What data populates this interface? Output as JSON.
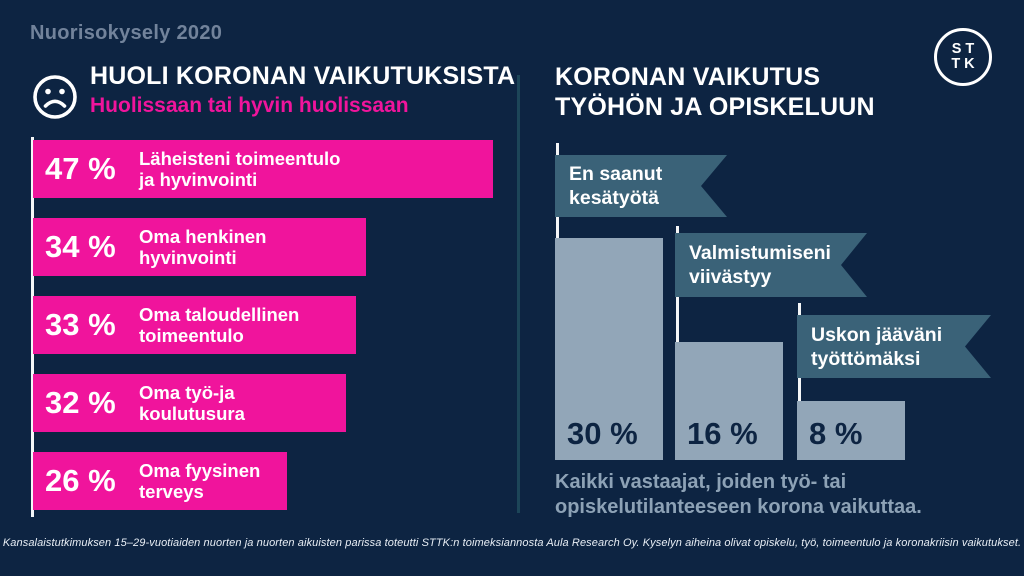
{
  "eyebrow": "Nuorisokysely 2020",
  "left_chart": {
    "title": "HUOLI KORONAN VAIKUTUKSISTA",
    "subtitle": "Huolissaan tai hyvin huolissaan",
    "bars": [
      {
        "pct": "47 %",
        "label": "Läheisteni toimeentulo\nja hyvinvointi"
      },
      {
        "pct": "34 %",
        "label": "Oma henkinen\nhyvinvointi"
      },
      {
        "pct": "33 %",
        "label": "Oma taloudellinen\ntoimeentulo"
      },
      {
        "pct": "32 %",
        "label": "Oma työ-ja\nkoulutusura"
      },
      {
        "pct": "26 %",
        "label": "Oma fyysinen\nterveys"
      }
    ]
  },
  "right_chart": {
    "title": "KORONAN VAIKUTUS\nTYÖHÖN JA OPISKELUUN",
    "bars": [
      {
        "pct": "30 %",
        "flag": "En saanut\nkesätyötä"
      },
      {
        "pct": "16 %",
        "flag": "Valmistumiseni\nviivästyy"
      },
      {
        "pct": "8 %",
        "flag": "Uskon jääväni\ntyöttömäksi"
      }
    ],
    "caption": "Kaikki vastaajat, joiden työ- tai\nopiskelutilanteeseen korona vaikuttaa."
  },
  "logo": {
    "line1": "ST",
    "line2": "TK"
  },
  "footer": "Kansalaistutkimuksen 15–29-vuotiaiden nuorten ja nuorten aikuisten parissa toteutti STTK:n toimeksiannosta Aula Research Oy. Kyselyn aiheina olivat opiskelu, työ, toimeentulo ja koronakriisin vaikutukset.",
  "colors": {
    "background": "#0D2442",
    "pink": "#F0149C",
    "light_bar": "#92A6B8",
    "flag_slate": "#3A6278",
    "eyebrow_text": "#72839B",
    "caption_text": "#8DA2B6",
    "white": "#FFFFFF"
  },
  "chart_data": [
    {
      "type": "bar",
      "orientation": "horizontal",
      "title": "HUOLI KORONAN VAIKUTUKSISTA",
      "subtitle": "Huolissaan tai hyvin huolissaan",
      "categories": [
        "Läheisteni toimeentulo ja hyvinvointi",
        "Oma henkinen hyvinvointi",
        "Oma taloudellinen toimeentulo",
        "Oma työ-ja koulutusura",
        "Oma fyysinen terveys"
      ],
      "values": [
        47,
        34,
        33,
        32,
        26
      ],
      "unit": "%",
      "bar_color": "#F0149C",
      "grid": false,
      "legend": false
    },
    {
      "type": "bar",
      "orientation": "vertical",
      "title": "KORONAN VAIKUTUS TYÖHÖN JA OPISKELUUN",
      "categories": [
        "En saanut kesätyötä",
        "Valmistumiseni viivästyy",
        "Uskon jääväni työttömäksi"
      ],
      "values": [
        30,
        16,
        8
      ],
      "unit": "%",
      "bar_color": "#92A6B8",
      "caption": "Kaikki vastaajat, joiden työ- tai opiskelutilanteeseen korona vaikuttaa.",
      "grid": false,
      "legend": false
    }
  ]
}
